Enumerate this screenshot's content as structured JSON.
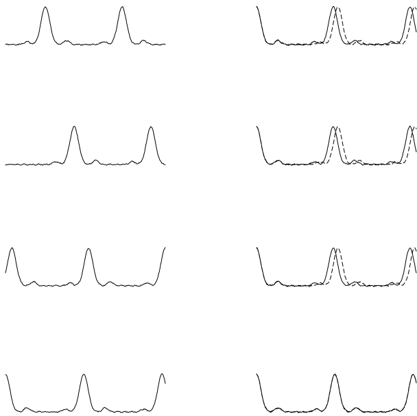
{
  "figure": {
    "background": "#ffffff",
    "line_color": "#000000"
  },
  "chart_data": [
    {
      "type": "line",
      "panel": "row-1-left",
      "row": 1,
      "column": 1,
      "title": "",
      "xlabel": "",
      "ylabel": "",
      "axes_visible": false,
      "grid": false,
      "x_range": [
        0,
        1
      ],
      "y_range": [
        0,
        1
      ],
      "period": 0.48,
      "noise": 0.012,
      "series": [
        {
          "style": "solid",
          "peak_positions": [
            0.25,
            0.73
          ],
          "edge_peaks": false,
          "noise_seed": 1
        }
      ]
    },
    {
      "type": "line",
      "panel": "row-1-right",
      "row": 1,
      "column": 2,
      "title": "",
      "xlabel": "",
      "ylabel": "",
      "axes_visible": false,
      "grid": false,
      "x_range": [
        0,
        1
      ],
      "y_range": [
        0,
        1
      ],
      "period": 0.48,
      "noise": 0.012,
      "series": [
        {
          "style": "solid",
          "peak_positions": [
            0.0,
            0.48,
            0.96
          ],
          "edge_peaks": true,
          "noise_seed": 2
        },
        {
          "style": "dashed",
          "peak_positions": [
            0.0,
            0.51,
            0.99
          ],
          "edge_peaks": true,
          "noise_seed": 3
        }
      ]
    },
    {
      "type": "line",
      "panel": "row-2-left",
      "row": 2,
      "column": 1,
      "title": "",
      "xlabel": "",
      "ylabel": "",
      "axes_visible": false,
      "grid": false,
      "x_range": [
        0,
        1
      ],
      "y_range": [
        0,
        1
      ],
      "period": 0.48,
      "noise": 0.012,
      "series": [
        {
          "style": "solid",
          "peak_positions": [
            0.43,
            0.91
          ],
          "edge_peaks": false,
          "noise_seed": 4
        }
      ]
    },
    {
      "type": "line",
      "panel": "row-2-right",
      "row": 2,
      "column": 2,
      "title": "",
      "xlabel": "",
      "ylabel": "",
      "axes_visible": false,
      "grid": false,
      "x_range": [
        0,
        1
      ],
      "y_range": [
        0,
        1
      ],
      "period": 0.48,
      "noise": 0.012,
      "series": [
        {
          "style": "solid",
          "peak_positions": [
            0.0,
            0.48,
            0.96
          ],
          "edge_peaks": true,
          "noise_seed": 5
        },
        {
          "style": "dashed",
          "peak_positions": [
            0.0,
            0.51,
            0.99
          ],
          "edge_peaks": true,
          "noise_seed": 6
        }
      ]
    },
    {
      "type": "line",
      "panel": "row-3-left",
      "row": 3,
      "column": 1,
      "title": "",
      "xlabel": "",
      "ylabel": "",
      "axes_visible": false,
      "grid": false,
      "x_range": [
        0,
        1
      ],
      "y_range": [
        0,
        1
      ],
      "period": 0.48,
      "noise": 0.012,
      "series": [
        {
          "style": "solid",
          "peak_positions": [
            0.04,
            0.52,
            1.0
          ],
          "edge_peaks": false,
          "noise_seed": 7
        }
      ]
    },
    {
      "type": "line",
      "panel": "row-3-right",
      "row": 3,
      "column": 2,
      "title": "",
      "xlabel": "",
      "ylabel": "",
      "axes_visible": false,
      "grid": false,
      "x_range": [
        0,
        1
      ],
      "y_range": [
        0,
        1
      ],
      "period": 0.48,
      "noise": 0.012,
      "series": [
        {
          "style": "solid",
          "peak_positions": [
            0.0,
            0.48,
            0.96
          ],
          "edge_peaks": true,
          "noise_seed": 8
        },
        {
          "style": "dashed",
          "peak_positions": [
            0.0,
            0.51,
            0.99
          ],
          "edge_peaks": true,
          "noise_seed": 9
        }
      ]
    },
    {
      "type": "line",
      "panel": "row-4-left",
      "row": 4,
      "column": 1,
      "title": "",
      "xlabel": "",
      "ylabel": "",
      "axes_visible": false,
      "grid": false,
      "x_range": [
        0,
        1
      ],
      "y_range": [
        0,
        1
      ],
      "period": 0.48,
      "noise": 0.012,
      "series": [
        {
          "style": "solid",
          "peak_positions": [
            0.0,
            0.49,
            0.98
          ],
          "edge_peaks": true,
          "noise_seed": 10
        }
      ]
    },
    {
      "type": "line",
      "panel": "row-4-right",
      "row": 4,
      "column": 2,
      "title": "",
      "xlabel": "",
      "ylabel": "",
      "axes_visible": false,
      "grid": false,
      "x_range": [
        0,
        1
      ],
      "y_range": [
        0,
        1
      ],
      "period": 0.48,
      "noise": 0.012,
      "series": [
        {
          "style": "solid",
          "peak_positions": [
            0.0,
            0.49,
            0.98
          ],
          "edge_peaks": true,
          "noise_seed": 11
        },
        {
          "style": "dashed",
          "peak_positions": [
            0.0,
            0.49,
            0.98
          ],
          "edge_peaks": true,
          "noise_seed": 12
        }
      ]
    }
  ]
}
